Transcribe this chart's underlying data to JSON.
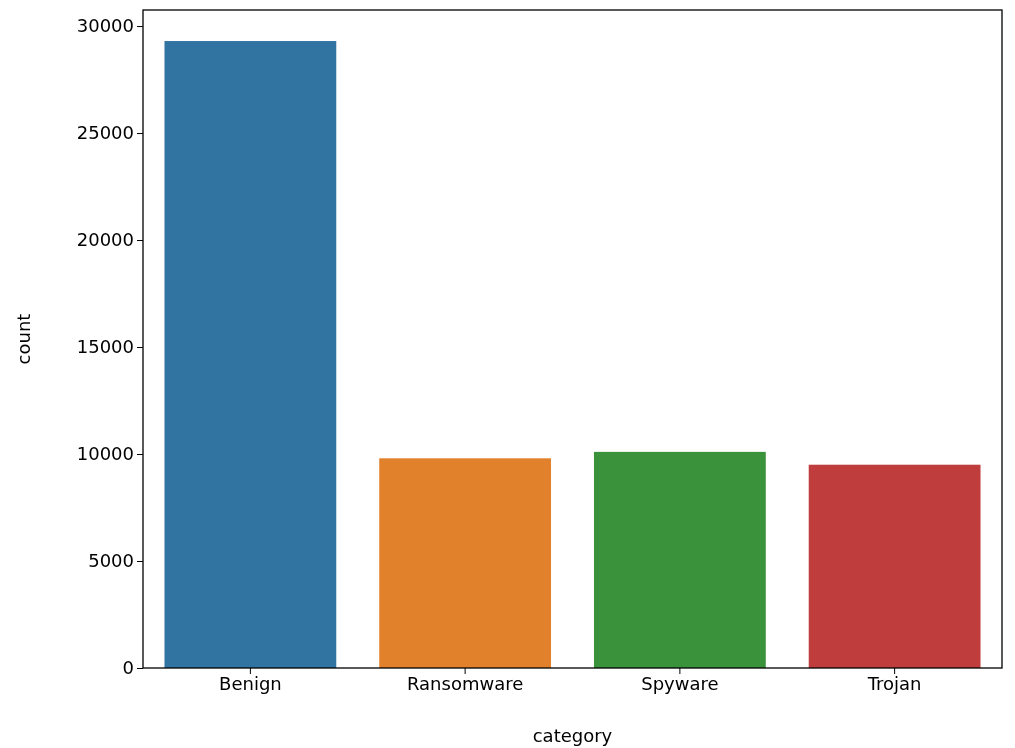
{
  "chart_data": {
    "type": "bar",
    "xlabel": "category",
    "ylabel": "count",
    "categories": [
      "Benign",
      "Ransomware",
      "Spyware",
      "Trojan"
    ],
    "values": [
      29300,
      9800,
      10100,
      9500
    ],
    "colors": [
      "#3274a1",
      "#e1812c",
      "#3a923a",
      "#c03d3e"
    ],
    "ylim": [
      0,
      30750
    ],
    "yticks": [
      0,
      5000,
      10000,
      15000,
      20000,
      25000,
      30000
    ]
  }
}
